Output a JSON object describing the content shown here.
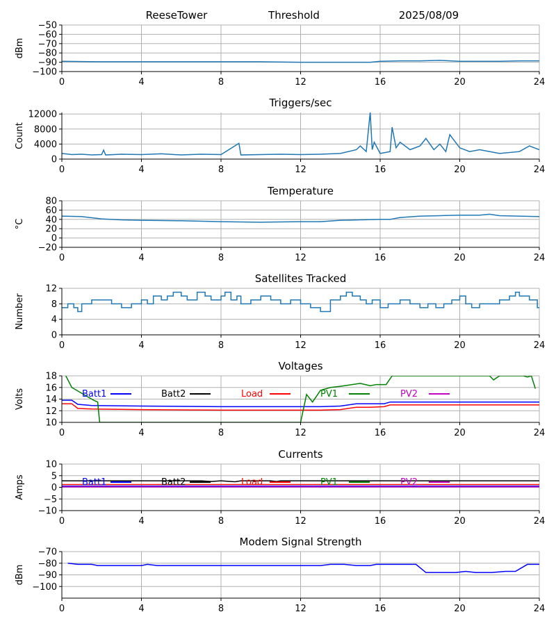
{
  "header": {
    "station": "ReeseTower",
    "label": "Threshold",
    "date": "2025/08/09"
  },
  "chart_data": [
    {
      "id": "threshold",
      "type": "line",
      "title": "",
      "xlabel": "",
      "ylabel": "dBm",
      "xlim": [
        0,
        24
      ],
      "ylim": [
        -100,
        -50
      ],
      "xticks": [
        "0",
        "4",
        "8",
        "12",
        "16",
        "20",
        "24"
      ],
      "yticks": [
        "-100",
        "-90",
        "-80",
        "-70",
        "-60",
        "-50"
      ],
      "grid": true,
      "series": [
        {
          "color": "#1f77b4",
          "x": [
            0,
            2,
            4,
            6,
            8,
            10,
            12,
            14,
            15.5,
            16,
            17,
            18,
            19,
            20,
            21,
            22,
            23,
            24
          ],
          "y": [
            -89,
            -89.5,
            -89.5,
            -89.5,
            -89.5,
            -89.5,
            -90,
            -90,
            -90,
            -89,
            -88.5,
            -88.5,
            -88,
            -89,
            -89,
            -89,
            -88.5,
            -88.5
          ]
        }
      ]
    },
    {
      "id": "triggers",
      "type": "line",
      "title": "Triggers/sec",
      "xlabel": "",
      "ylabel": "Count",
      "xlim": [
        0,
        24
      ],
      "ylim": [
        0,
        12400
      ],
      "xticks": [
        "0",
        "4",
        "8",
        "12",
        "16",
        "20",
        "24"
      ],
      "yticks": [
        "0",
        "4000",
        "8000",
        "12000"
      ],
      "grid": true,
      "series": [
        {
          "color": "#1f77b4",
          "x": [
            0,
            0.5,
            1,
            1.5,
            2,
            2.1,
            2.2,
            3,
            4,
            5,
            6,
            7,
            8,
            8.9,
            9,
            10,
            11,
            12,
            13,
            14,
            14.8,
            15,
            15.3,
            15.5,
            15.6,
            15.7,
            16,
            16.5,
            16.6,
            16.8,
            17,
            17.5,
            18,
            18.3,
            18.7,
            19,
            19.3,
            19.5,
            20,
            20.5,
            21,
            22,
            23,
            23.5,
            24
          ],
          "y": [
            1500,
            1200,
            1300,
            1100,
            1200,
            2400,
            1100,
            1300,
            1200,
            1400,
            1100,
            1300,
            1200,
            4200,
            1100,
            1200,
            1300,
            1200,
            1300,
            1500,
            2500,
            3500,
            2000,
            12500,
            2500,
            4500,
            1500,
            2000,
            8500,
            3000,
            4500,
            2500,
            3500,
            5500,
            2500,
            4000,
            2000,
            6500,
            3000,
            2000,
            2500,
            1500,
            2000,
            3500,
            2500
          ]
        }
      ]
    },
    {
      "id": "temperature",
      "type": "line",
      "title": "Temperature",
      "xlabel": "",
      "ylabel": "°C",
      "xlim": [
        0,
        24
      ],
      "ylim": [
        -20,
        80
      ],
      "xticks": [
        "0",
        "4",
        "8",
        "12",
        "16",
        "20",
        "24"
      ],
      "yticks": [
        "-20",
        "0",
        "20",
        "40",
        "60",
        "80"
      ],
      "grid": true,
      "series": [
        {
          "color": "#1f77b4",
          "x": [
            0,
            1,
            2,
            3,
            4,
            6,
            8,
            10,
            12,
            13,
            14,
            16,
            16.5,
            17,
            18,
            19,
            20,
            21,
            21.5,
            22,
            23,
            24
          ],
          "y": [
            47,
            46,
            41,
            39,
            38,
            37,
            35,
            34,
            35,
            35,
            38,
            40,
            40,
            44,
            47,
            48,
            49,
            49,
            51,
            48,
            47,
            46
          ]
        }
      ]
    },
    {
      "id": "satellites",
      "type": "line",
      "title": "Satellites Tracked",
      "xlabel": "",
      "ylabel": "Number",
      "xlim": [
        0,
        24
      ],
      "ylim": [
        0,
        12
      ],
      "xticks": [
        "0",
        "4",
        "8",
        "12",
        "16",
        "20",
        "24"
      ],
      "yticks": [
        "0",
        "4",
        "8",
        "12"
      ],
      "grid": true,
      "series": [
        {
          "color": "#1f77b4",
          "step": true,
          "x": [
            0,
            0.3,
            0.6,
            0.8,
            1,
            1.5,
            2,
            2.5,
            3,
            3.5,
            4,
            4.3,
            4.6,
            5,
            5.3,
            5.6,
            6,
            6.3,
            6.8,
            7.2,
            7.5,
            8,
            8.2,
            8.5,
            8.8,
            9,
            9.5,
            10,
            10.5,
            11,
            11.5,
            12,
            12.5,
            13,
            13.5,
            14,
            14.3,
            14.6,
            15,
            15.3,
            15.6,
            16,
            16.4,
            17,
            17.5,
            18,
            18.4,
            18.8,
            19.2,
            19.6,
            20,
            20.3,
            20.6,
            21,
            21.5,
            22,
            22.5,
            22.8,
            23,
            23.5,
            23.9,
            24
          ],
          "y": [
            7,
            8,
            7,
            6,
            8,
            9,
            9,
            8,
            7,
            8,
            9,
            8,
            10,
            9,
            10,
            11,
            10,
            9,
            11,
            10,
            9,
            10,
            11,
            9,
            10,
            8,
            9,
            10,
            9,
            8,
            9,
            8,
            7,
            6,
            9,
            10,
            11,
            10,
            9,
            8,
            9,
            7,
            8,
            9,
            8,
            7,
            8,
            7,
            8,
            9,
            10,
            8,
            7,
            8,
            8,
            9,
            10,
            11,
            10,
            9,
            7,
            7
          ]
        }
      ]
    },
    {
      "id": "voltages",
      "type": "line",
      "title": "Voltages",
      "xlabel": "",
      "ylabel": "Volts",
      "xlim": [
        0,
        24
      ],
      "ylim": [
        10,
        18
      ],
      "xticks": [
        "0",
        "4",
        "8",
        "12",
        "16",
        "20",
        "24"
      ],
      "yticks": [
        "10",
        "12",
        "14",
        "16",
        "18"
      ],
      "grid": true,
      "legend": "top",
      "series": [
        {
          "name": "Batt1",
          "color": "#0000ff",
          "x": [
            0,
            0.5,
            0.8,
            1.5,
            4,
            8,
            12,
            13,
            14,
            14.8,
            15.5,
            16.2,
            16.5,
            17,
            20,
            24
          ],
          "y": [
            13.8,
            13.8,
            13.1,
            12.9,
            12.8,
            12.7,
            12.7,
            12.7,
            12.8,
            13.2,
            13.2,
            13.2,
            13.5,
            13.5,
            13.5,
            13.5
          ]
        },
        {
          "name": "Batt2",
          "color": "#000000",
          "x": [],
          "y": []
        },
        {
          "name": "Load",
          "color": "#ff0000",
          "x": [
            0,
            0.5,
            0.8,
            1.5,
            4,
            8,
            12,
            13,
            14,
            14.8,
            15.5,
            16.2,
            16.5,
            17,
            20,
            24
          ],
          "y": [
            13.2,
            13.2,
            12.4,
            12.3,
            12.2,
            12.1,
            12.1,
            12.1,
            12.2,
            12.6,
            12.6,
            12.7,
            13,
            13,
            13,
            13
          ]
        },
        {
          "name": "PV1",
          "color": "#008000",
          "x": [
            0.2,
            0.5,
            1,
            1.5,
            1.6,
            1.8,
            1.9,
            12,
            12.3,
            12.6,
            13,
            13.5,
            14,
            15,
            15.5,
            15.8,
            16.3,
            16.5,
            16.6,
            21.5,
            21.7,
            22,
            23.2,
            23.4,
            23.6,
            23.8
          ],
          "y": [
            18,
            16,
            15,
            14,
            13.8,
            13.5,
            10,
            10,
            14.8,
            13.5,
            15.5,
            16,
            16.2,
            16.7,
            16.3,
            16.5,
            16.5,
            17.5,
            18,
            18,
            17.3,
            18,
            18,
            17.8,
            18,
            15.8
          ]
        },
        {
          "name": "PV2",
          "color": "#bf00bf",
          "x": [],
          "y": []
        }
      ]
    },
    {
      "id": "currents",
      "type": "line",
      "title": "Currents",
      "xlabel": "",
      "ylabel": "Amps",
      "xlim": [
        0,
        24
      ],
      "ylim": [
        -10,
        10
      ],
      "xticks": [
        "0",
        "4",
        "8",
        "12",
        "16",
        "20",
        "24"
      ],
      "yticks": [
        "-10",
        "-5",
        "0",
        "5",
        "10"
      ],
      "grid": true,
      "legend": "top",
      "series": [
        {
          "name": "Batt1",
          "color": "#0000ff",
          "x": [
            0,
            24
          ],
          "y": [
            0.5,
            0.5
          ]
        },
        {
          "name": "Batt2",
          "color": "#000000",
          "x": [
            0,
            4,
            7,
            7.5,
            8,
            8.7,
            9,
            10.5,
            10.8,
            11,
            12,
            24
          ],
          "y": [
            2.8,
            2.8,
            2.8,
            2.5,
            2.8,
            2.4,
            2.8,
            2.8,
            2.5,
            2.8,
            2.8,
            2.8
          ]
        },
        {
          "name": "Load",
          "color": "#ff0000",
          "x": [
            0,
            24
          ],
          "y": [
            1.2,
            1.2
          ]
        },
        {
          "name": "PV1",
          "color": "#008000",
          "x": [],
          "y": []
        },
        {
          "name": "PV2",
          "color": "#bf00bf",
          "x": [
            0,
            24
          ],
          "y": [
            0.2,
            0.2
          ]
        }
      ]
    },
    {
      "id": "modem",
      "type": "line",
      "title": "Modem Signal Strength",
      "xlabel": "",
      "ylabel": "dBm",
      "xlim": [
        0,
        24
      ],
      "ylim": [
        -110,
        -70
      ],
      "xticks": [
        "0",
        "4",
        "8",
        "12",
        "16",
        "20",
        "24"
      ],
      "yticks": [
        "-100",
        "-90",
        "-80",
        "-70"
      ],
      "grid": true,
      "series": [
        {
          "color": "#0000ff",
          "x": [
            0.3,
            0.8,
            1.5,
            1.8,
            2.4,
            4,
            4.3,
            4.8,
            12,
            13,
            13.5,
            14.2,
            14.8,
            15.5,
            15.8,
            16.5,
            17.8,
            18.3,
            19.8,
            20.3,
            20.8,
            21.6,
            22.3,
            22.8,
            23.4,
            24
          ],
          "y": [
            -80,
            -81,
            -81,
            -82,
            -82,
            -82,
            -81,
            -82,
            -82,
            -82,
            -81,
            -81,
            -82,
            -82,
            -81,
            -81,
            -81,
            -88,
            -88,
            -87,
            -88,
            -88,
            -87,
            -87,
            -81,
            -81
          ]
        }
      ]
    }
  ]
}
